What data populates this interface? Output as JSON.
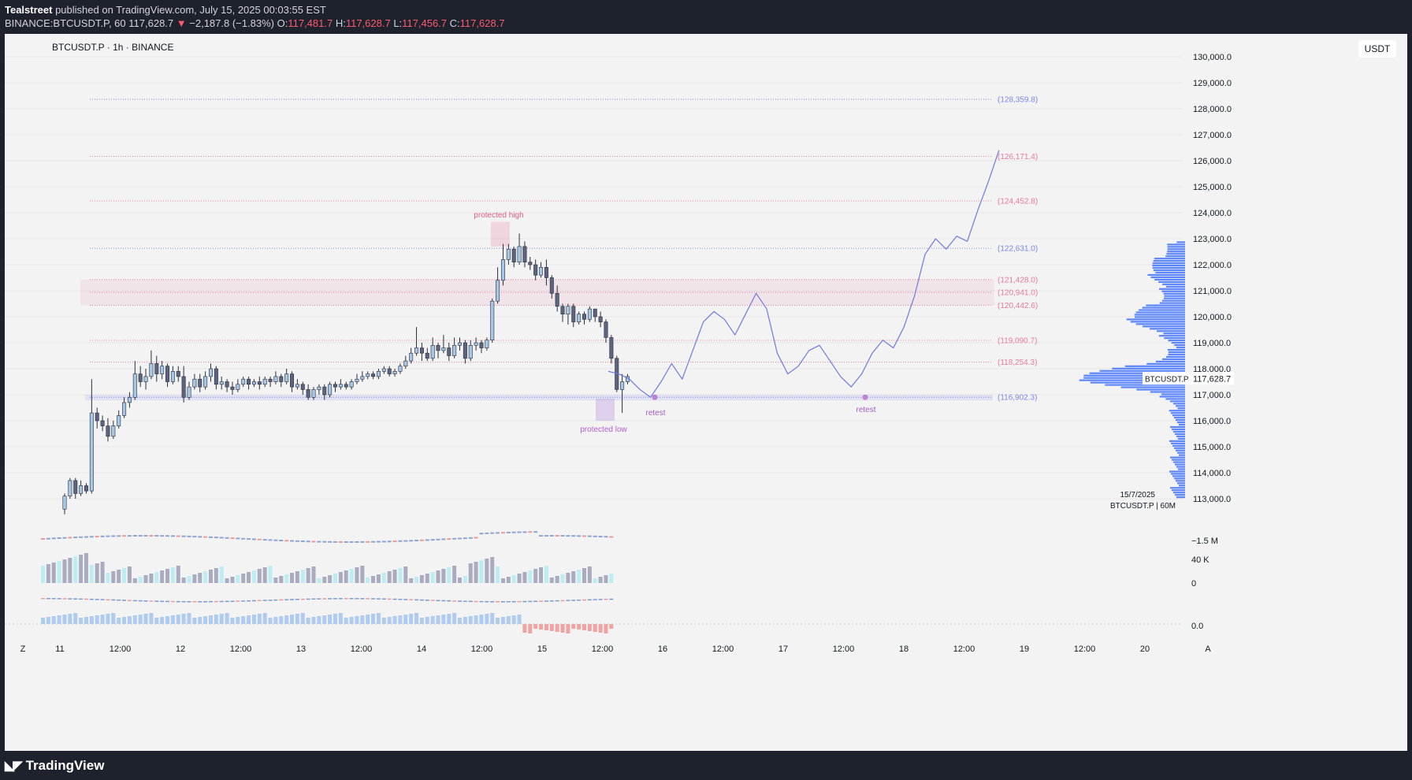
{
  "header": {
    "author": "Tealstreet",
    "published": " published on TradingView.com, July 15, 2025 00:03:55 EST",
    "symbol_line": "BINANCE:BTCUSDT.P, 60",
    "last": "117,628.7",
    "arrow": "▼",
    "change": "−2,187.8 (−1.83%)",
    "o_label": "O:",
    "o_val": "117,481.7",
    "h_label": "H:",
    "h_val": "117,628.7",
    "l_label": "L:",
    "l_val": "117,456.7",
    "c_label": "C:",
    "c_val": "117,628.7"
  },
  "chart_title": "BTCUSDT.P · 1h · BINANCE",
  "unit_button": "USDT",
  "logo_text": "TradingView",
  "logo_icon": "tradingview-logo-icon",
  "colors": {
    "up": "#a7c7e7",
    "down": "#5d6480",
    "bg": "#f3f3f3",
    "grid": "#e7e7e7",
    "accent": "#6e79e0",
    "pink": "#e879a0"
  },
  "price_axis": {
    "ticks": [
      "130,000.0",
      "129,000.0",
      "128,000.0",
      "127,000.0",
      "126,000.0",
      "125,000.0",
      "124,000.0",
      "123,000.0",
      "122,000.0",
      "121,000.0",
      "120,000.0",
      "119,000.0",
      "118,000.0",
      "117,000.0",
      "116,000.0",
      "115,000.0",
      "114,000.0",
      "113,000.0"
    ],
    "current_symbol": "BTCUSDT.P",
    "current_price": "117,628.7",
    "indicator_ticks": [
      "−1.5 M",
      "40 K",
      "0",
      "0.0"
    ]
  },
  "time_axis": {
    "corner_left": "Z",
    "corner_right": "A",
    "labels": [
      "11",
      "12:00",
      "12",
      "12:00",
      "13",
      "12:00",
      "14",
      "12:00",
      "15",
      "12:00",
      "16",
      "12:00",
      "17",
      "12:00",
      "18",
      "12:00",
      "19",
      "12:00",
      "20"
    ]
  },
  "vp_label": {
    "date": "15/7/2025",
    "sym": "BTCUSDT.P | 60M"
  },
  "annotations": {
    "protected_high": "protected high",
    "protected_low": "protected low",
    "retest_1": "retest",
    "retest_2": "retest"
  },
  "chart_data": {
    "type": "candlestick",
    "title": "BTCUSDT.P · 1h · BINANCE",
    "ylim": [
      112300,
      130300
    ],
    "levels": [
      {
        "label": "(128,359.8)",
        "value": 128359.8,
        "color": "#7c86e6"
      },
      {
        "label": "(126,171.4)",
        "value": 126171.4,
        "color": "#e879a0"
      },
      {
        "label": "(124,452.8)",
        "value": 124452.8,
        "color": "#e879a0"
      },
      {
        "label": "(122,631.0)",
        "value": 122631.0,
        "color": "#7c86e6"
      },
      {
        "label": "(121,428.0)",
        "value": 121428.0,
        "color": "#e879a0"
      },
      {
        "label": "(120,941.0)",
        "value": 120941.0,
        "color": "#e879a0"
      },
      {
        "label": "(120,442.6)",
        "value": 120442.6,
        "color": "#e879a0"
      },
      {
        "label": "(119,090.7)",
        "value": 119090.7,
        "color": "#e879a0"
      },
      {
        "label": "(118,254.3)",
        "value": 118254.3,
        "color": "#e879a0"
      },
      {
        "label": "(116,902.3)",
        "value": 116902.3,
        "color": "#7c86e6"
      }
    ],
    "candles": [
      [
        112600,
        113100,
        112400,
        113200
      ],
      [
        113100,
        113700,
        113000,
        113800
      ],
      [
        113700,
        113200,
        113000,
        113800
      ],
      [
        113200,
        113500,
        113100,
        113700
      ],
      [
        113500,
        113300,
        113200,
        113600
      ],
      [
        113300,
        116300,
        113200,
        117600
      ],
      [
        116300,
        116000,
        115700,
        116500
      ],
      [
        116000,
        115800,
        115600,
        116200
      ],
      [
        115800,
        115400,
        115200,
        116100
      ],
      [
        115400,
        115800,
        115300,
        116000
      ],
      [
        115800,
        116200,
        115700,
        116400
      ],
      [
        116200,
        116700,
        116100,
        116900
      ],
      [
        116700,
        116900,
        116500,
        117100
      ],
      [
        116900,
        117800,
        116800,
        118300
      ],
      [
        117800,
        117500,
        117300,
        118100
      ],
      [
        117500,
        117700,
        117200,
        118000
      ],
      [
        117700,
        118200,
        117600,
        118700
      ],
      [
        118200,
        117800,
        117500,
        118500
      ],
      [
        117800,
        118100,
        117600,
        118300
      ],
      [
        118100,
        117500,
        117300,
        118200
      ],
      [
        117500,
        117900,
        117400,
        118100
      ],
      [
        117900,
        117700,
        117500,
        118100
      ],
      [
        117700,
        116900,
        116700,
        118100
      ],
      [
        116900,
        117300,
        116800,
        117500
      ],
      [
        117300,
        117600,
        117200,
        117800
      ],
      [
        117600,
        117300,
        117100,
        117800
      ],
      [
        117300,
        117700,
        117200,
        117900
      ],
      [
        117700,
        118000,
        117500,
        118200
      ],
      [
        118000,
        117400,
        117200,
        118100
      ],
      [
        117400,
        117500,
        117200,
        117700
      ],
      [
        117500,
        117300,
        117100,
        117600
      ],
      [
        117300,
        117200,
        117000,
        117500
      ],
      [
        117200,
        117400,
        117100,
        117600
      ],
      [
        117400,
        117600,
        117300,
        117700
      ],
      [
        117600,
        117400,
        117200,
        117700
      ],
      [
        117400,
        117500,
        117300,
        117600
      ],
      [
        117500,
        117400,
        117200,
        117700
      ],
      [
        117400,
        117600,
        117300,
        117700
      ],
      [
        117600,
        117500,
        117300,
        117700
      ],
      [
        117500,
        117700,
        117400,
        117900
      ],
      [
        117700,
        117500,
        117300,
        117800
      ],
      [
        117500,
        117800,
        117400,
        118000
      ],
      [
        117800,
        117300,
        117100,
        117900
      ],
      [
        117300,
        117400,
        117200,
        117600
      ],
      [
        117400,
        117200,
        117000,
        117500
      ],
      [
        117200,
        116900,
        116800,
        117400
      ],
      [
        116900,
        117200,
        116800,
        117300
      ],
      [
        117200,
        117300,
        117000,
        117400
      ],
      [
        117300,
        117000,
        116800,
        117400
      ],
      [
        117000,
        117400,
        116900,
        117500
      ],
      [
        117400,
        117300,
        117100,
        117500
      ],
      [
        117300,
        117400,
        117200,
        117600
      ],
      [
        117400,
        117300,
        117200,
        117500
      ],
      [
        117300,
        117500,
        117200,
        117600
      ],
      [
        117500,
        117600,
        117400,
        117800
      ],
      [
        117600,
        117700,
        117500,
        117900
      ],
      [
        117700,
        117800,
        117600,
        117900
      ],
      [
        117800,
        117700,
        117600,
        117900
      ],
      [
        117700,
        117900,
        117600,
        118000
      ],
      [
        117900,
        118000,
        117800,
        118100
      ],
      [
        118000,
        117800,
        117700,
        118100
      ],
      [
        117800,
        117900,
        117700,
        118000
      ],
      [
        117900,
        118100,
        117800,
        118200
      ],
      [
        118100,
        118300,
        118000,
        118500
      ],
      [
        118300,
        118600,
        118200,
        118800
      ],
      [
        118600,
        118800,
        118500,
        119600
      ],
      [
        118800,
        118600,
        118300,
        119000
      ],
      [
        118600,
        118400,
        118300,
        118800
      ],
      [
        118400,
        118900,
        118300,
        119200
      ],
      [
        118900,
        118700,
        118400,
        119000
      ],
      [
        118700,
        118800,
        118600,
        119300
      ],
      [
        118800,
        118500,
        118300,
        119000
      ],
      [
        118500,
        118900,
        118400,
        119200
      ],
      [
        118900,
        119000,
        118700,
        119200
      ],
      [
        119000,
        118400,
        118200,
        119100
      ],
      [
        118400,
        118900,
        118300,
        119100
      ],
      [
        118900,
        119000,
        118700,
        119200
      ],
      [
        119000,
        118800,
        118600,
        119100
      ],
      [
        118800,
        119100,
        118700,
        119200
      ],
      [
        119100,
        120600,
        119000,
        120700
      ],
      [
        120600,
        121400,
        120500,
        121900
      ],
      [
        121400,
        122200,
        121200,
        122800
      ],
      [
        122200,
        122600,
        122000,
        122800
      ],
      [
        122600,
        122100,
        121900,
        122700
      ],
      [
        122100,
        122700,
        122000,
        123200
      ],
      [
        122700,
        122100,
        121900,
        122900
      ],
      [
        122100,
        122000,
        121800,
        122300
      ],
      [
        122000,
        121600,
        121400,
        122200
      ],
      [
        121600,
        121900,
        121500,
        122100
      ],
      [
        121900,
        121500,
        121200,
        122200
      ],
      [
        121500,
        120900,
        120700,
        121600
      ],
      [
        120900,
        120400,
        120200,
        121200
      ],
      [
        120400,
        120100,
        119800,
        120500
      ],
      [
        120100,
        120400,
        119700,
        120500
      ],
      [
        120400,
        119800,
        119600,
        120500
      ],
      [
        119800,
        120100,
        119700,
        120200
      ],
      [
        120100,
        119900,
        119700,
        120200
      ],
      [
        119900,
        120300,
        119800,
        120400
      ],
      [
        120300,
        120000,
        119800,
        120300
      ],
      [
        120000,
        119800,
        119600,
        120200
      ],
      [
        119800,
        119200,
        119000,
        119900
      ],
      [
        119200,
        118400,
        118200,
        119300
      ],
      [
        118400,
        117200,
        117100,
        118500
      ],
      [
        117200,
        117500,
        116300,
        117800
      ],
      [
        117500,
        117700,
        117400,
        117800
      ]
    ],
    "forecast_path": [
      [
        0,
        117900
      ],
      [
        4,
        117800
      ],
      [
        8,
        117600
      ],
      [
        12,
        117200
      ],
      [
        16,
        116900
      ],
      [
        20,
        117500
      ],
      [
        24,
        118200
      ],
      [
        28,
        117600
      ],
      [
        32,
        118700
      ],
      [
        36,
        119800
      ],
      [
        40,
        120200
      ],
      [
        44,
        119900
      ],
      [
        48,
        119300
      ],
      [
        52,
        120100
      ],
      [
        56,
        120900
      ],
      [
        60,
        120300
      ],
      [
        64,
        118600
      ],
      [
        68,
        117800
      ],
      [
        72,
        118100
      ],
      [
        76,
        118700
      ],
      [
        80,
        118900
      ],
      [
        84,
        118300
      ],
      [
        88,
        117700
      ],
      [
        92,
        117300
      ],
      [
        96,
        117800
      ],
      [
        100,
        118600
      ],
      [
        104,
        119100
      ],
      [
        108,
        118800
      ],
      [
        112,
        119600
      ],
      [
        116,
        120800
      ],
      [
        120,
        122400
      ],
      [
        124,
        123000
      ],
      [
        128,
        122600
      ],
      [
        132,
        123100
      ],
      [
        136,
        122900
      ],
      [
        140,
        124100
      ],
      [
        144,
        125200
      ],
      [
        148,
        126400
      ]
    ]
  }
}
